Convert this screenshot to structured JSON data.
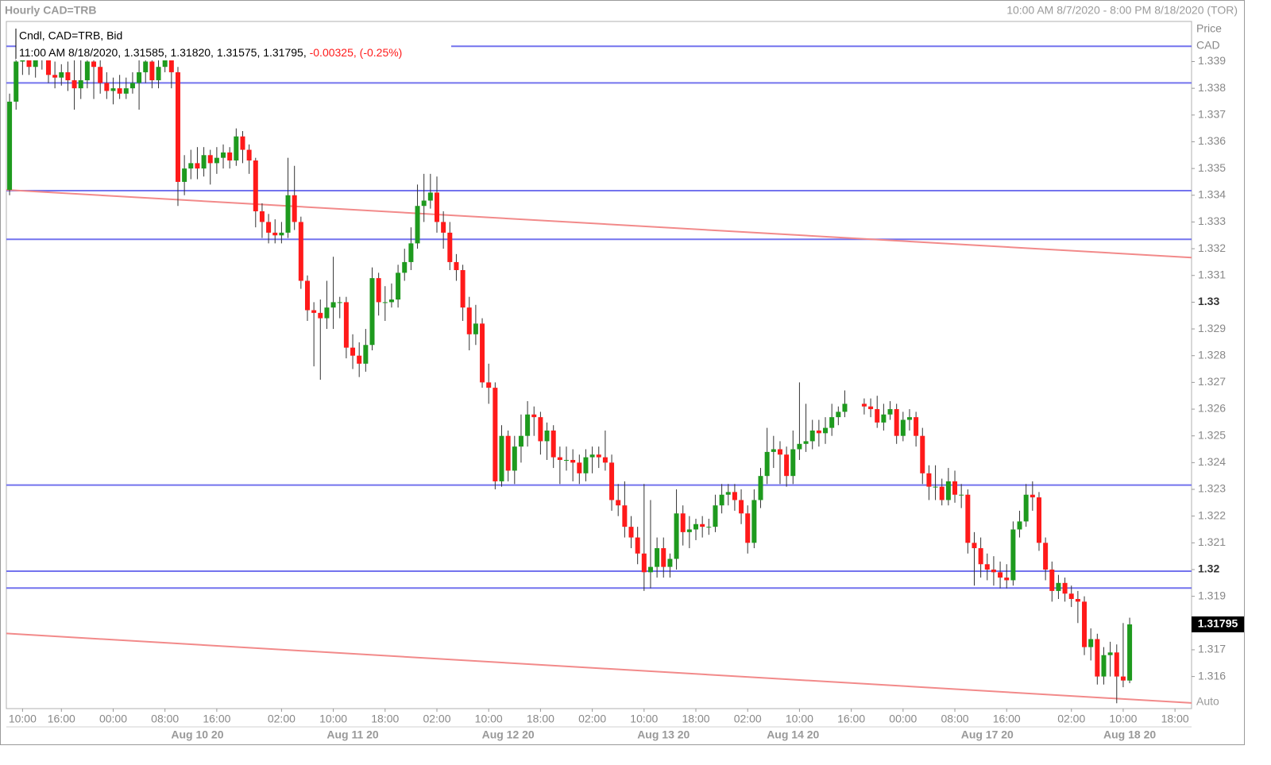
{
  "chart_data": {
    "type": "candlestick",
    "title": "Hourly CAD=TRB",
    "date_range": "10:00 AM 8/7/2020 - 8:00 PM 8/18/2020 (TOR)",
    "legend_title": "Cndl, CAD=TRB, Bid",
    "info_values": "11:00 AM 8/18/2020, 1.31585, 1.31820, 1.31575, 1.31795,",
    "info_change": "-0.00325, (-0.25%)",
    "axis_title": "Price",
    "axis_unit": "CAD",
    "scale_mode": "Auto",
    "last_price": 1.31795,
    "up_color": "#1e9a1e",
    "down_color": "#ff1a1a",
    "hline_color": "#7373ee",
    "trend_color": "#f28a8a",
    "xlim": [
      -0.5,
      182.56
    ],
    "ylim": [
      1.3148,
      1.3405
    ],
    "yticks": [
      1.339,
      1.338,
      1.337,
      1.336,
      1.335,
      1.334,
      1.333,
      1.332,
      1.331,
      1.33,
      1.329,
      1.328,
      1.327,
      1.326,
      1.325,
      1.324,
      1.323,
      1.322,
      1.321,
      1.32,
      1.319,
      1.318,
      1.317,
      1.316
    ],
    "xticks": [
      {
        "value": 2,
        "label": "10:00"
      },
      {
        "value": 8,
        "label": "16:00"
      },
      {
        "value": 16,
        "label": "00:00"
      },
      {
        "value": 24,
        "label": "08:00"
      },
      {
        "value": 32,
        "label": "16:00"
      },
      {
        "value": 42,
        "label": "02:00"
      },
      {
        "value": 50,
        "label": "10:00"
      },
      {
        "value": 58,
        "label": "18:00"
      },
      {
        "value": 66,
        "label": "02:00"
      },
      {
        "value": 74,
        "label": "10:00"
      },
      {
        "value": 82,
        "label": "18:00"
      },
      {
        "value": 90,
        "label": "02:00"
      },
      {
        "value": 98,
        "label": "10:00"
      },
      {
        "value": 106,
        "label": "18:00"
      },
      {
        "value": 114,
        "label": "02:00"
      },
      {
        "value": 122,
        "label": "10:00"
      },
      {
        "value": 130,
        "label": "16:00"
      },
      {
        "value": 138,
        "label": "00:00"
      },
      {
        "value": 146,
        "label": "08:00"
      },
      {
        "value": 154,
        "label": "16:00"
      },
      {
        "value": 164,
        "label": "02:00"
      },
      {
        "value": 172,
        "label": "10:00"
      },
      {
        "value": 180,
        "label": "18:00"
      }
    ],
    "date_ticks": [
      {
        "value": 29,
        "label": "Aug 10 20"
      },
      {
        "value": 53,
        "label": "Aug 11 20"
      },
      {
        "value": 77,
        "label": "Aug 12 20"
      },
      {
        "value": 101,
        "label": "Aug 13 20"
      },
      {
        "value": 121,
        "label": "Aug 14 20"
      },
      {
        "value": 151,
        "label": "Aug 17 20"
      },
      {
        "value": 173,
        "label": "Aug 18 20"
      }
    ],
    "hlines": [
      1.33957,
      1.3382,
      1.33417,
      1.33235,
      1.32316,
      1.31994,
      1.31931
    ],
    "trendlines": [
      {
        "x": [
          -0.5,
          182.56
        ],
        "y": [
          1.3342,
          1.33167
        ]
      },
      {
        "x": [
          -0.5,
          182.56
        ],
        "y": [
          1.31761,
          1.31501
        ]
      }
    ],
    "ohlc": [
      [
        1.3342,
        1.3378,
        1.334,
        1.3375
      ],
      [
        1.3375,
        1.34,
        1.3372,
        1.339
      ],
      [
        1.339,
        1.3398,
        1.3385,
        1.3393
      ],
      [
        1.3393,
        1.3396,
        1.3385,
        1.3388
      ],
      [
        1.3388,
        1.3395,
        1.3384,
        1.3392
      ],
      [
        1.3392,
        1.3396,
        1.3387,
        1.3391
      ],
      [
        1.3391,
        1.3394,
        1.3382,
        1.3385
      ],
      [
        1.3385,
        1.339,
        1.338,
        1.3384
      ],
      [
        1.3384,
        1.3389,
        1.3381,
        1.3386
      ],
      [
        1.3386,
        1.339,
        1.3379,
        1.3383
      ],
      [
        1.3383,
        1.3398,
        1.3372,
        1.338
      ],
      [
        1.338,
        1.3398,
        1.3376,
        1.3383
      ],
      [
        1.3383,
        1.3396,
        1.338,
        1.339
      ],
      [
        1.339,
        1.3395,
        1.3376,
        1.3388
      ],
      [
        1.3388,
        1.3392,
        1.3378,
        1.3382
      ],
      [
        1.3382,
        1.3386,
        1.3376,
        1.3379
      ],
      [
        1.3379,
        1.3384,
        1.3374,
        1.338
      ],
      [
        1.338,
        1.3385,
        1.3376,
        1.3378
      ],
      [
        1.3378,
        1.3384,
        1.3376,
        1.338
      ],
      [
        1.338,
        1.3386,
        1.3378,
        1.3382
      ],
      [
        1.3382,
        1.3392,
        1.3372,
        1.3386
      ],
      [
        1.3386,
        1.3398,
        1.3382,
        1.339
      ],
      [
        1.339,
        1.3394,
        1.338,
        1.3383
      ],
      [
        1.3383,
        1.3392,
        1.338,
        1.3388
      ],
      [
        1.3388,
        1.3396,
        1.3386,
        1.3392
      ],
      [
        1.3392,
        1.3394,
        1.338,
        1.3386
      ],
      [
        1.3386,
        1.3388,
        1.3336,
        1.3345
      ],
      [
        1.3345,
        1.3355,
        1.334,
        1.335
      ],
      [
        1.335,
        1.3357,
        1.3346,
        1.3352
      ],
      [
        1.3352,
        1.3358,
        1.3346,
        1.335
      ],
      [
        1.335,
        1.3358,
        1.3347,
        1.3355
      ],
      [
        1.3355,
        1.3357,
        1.3344,
        1.3352
      ],
      [
        1.3352,
        1.3358,
        1.3348,
        1.3354
      ],
      [
        1.3354,
        1.3359,
        1.335,
        1.3356
      ],
      [
        1.3356,
        1.3358,
        1.335,
        1.3353
      ],
      [
        1.3353,
        1.3365,
        1.3351,
        1.3362
      ],
      [
        1.3362,
        1.3364,
        1.3352,
        1.3357
      ],
      [
        1.3357,
        1.3359,
        1.3348,
        1.3353
      ],
      [
        1.3353,
        1.3354,
        1.3328,
        1.3334
      ],
      [
        1.3334,
        1.3337,
        1.3324,
        1.333
      ],
      [
        1.333,
        1.3333,
        1.3322,
        1.3326
      ],
      [
        1.3326,
        1.3331,
        1.3322,
        1.3325
      ],
      [
        1.3325,
        1.333,
        1.3322,
        1.3326
      ],
      [
        1.3326,
        1.3354,
        1.3324,
        1.334
      ],
      [
        1.334,
        1.3351,
        1.3327,
        1.333
      ],
      [
        1.333,
        1.3332,
        1.3305,
        1.3308
      ],
      [
        1.3308,
        1.331,
        1.3293,
        1.3297
      ],
      [
        1.3297,
        1.33,
        1.3276,
        1.3296
      ],
      [
        1.3296,
        1.3301,
        1.3271,
        1.3294
      ],
      [
        1.3294,
        1.3308,
        1.329,
        1.3298
      ],
      [
        1.3298,
        1.3317,
        1.329,
        1.33
      ],
      [
        1.33,
        1.3302,
        1.3294,
        1.33
      ],
      [
        1.33,
        1.3302,
        1.3279,
        1.3283
      ],
      [
        1.3283,
        1.3288,
        1.3275,
        1.328
      ],
      [
        1.328,
        1.3285,
        1.3272,
        1.3277
      ],
      [
        1.3277,
        1.329,
        1.3274,
        1.3284
      ],
      [
        1.3284,
        1.3313,
        1.3282,
        1.3309
      ],
      [
        1.3309,
        1.3311,
        1.3295,
        1.33
      ],
      [
        1.33,
        1.3306,
        1.3293,
        1.33
      ],
      [
        1.33,
        1.3307,
        1.3298,
        1.3301
      ],
      [
        1.3301,
        1.3314,
        1.3298,
        1.3311
      ],
      [
        1.3311,
        1.332,
        1.3308,
        1.3315
      ],
      [
        1.3315,
        1.3328,
        1.3312,
        1.3322
      ],
      [
        1.3322,
        1.3344,
        1.332,
        1.3336
      ],
      [
        1.3336,
        1.3348,
        1.333,
        1.3338
      ],
      [
        1.3338,
        1.3348,
        1.3335,
        1.3341
      ],
      [
        1.3341,
        1.3347,
        1.3326,
        1.333
      ],
      [
        1.333,
        1.3334,
        1.332,
        1.3326
      ],
      [
        1.3326,
        1.333,
        1.3312,
        1.3315
      ],
      [
        1.3315,
        1.3318,
        1.3308,
        1.3312
      ],
      [
        1.3312,
        1.3314,
        1.3293,
        1.3298
      ],
      [
        1.3298,
        1.3302,
        1.3282,
        1.3288
      ],
      [
        1.3288,
        1.3299,
        1.3284,
        1.3292
      ],
      [
        1.3292,
        1.3294,
        1.3268,
        1.327
      ],
      [
        1.327,
        1.3277,
        1.3262,
        1.3268
      ],
      [
        1.3268,
        1.327,
        1.323,
        1.3233
      ],
      [
        1.3233,
        1.3254,
        1.3231,
        1.325
      ],
      [
        1.325,
        1.3252,
        1.3233,
        1.3237
      ],
      [
        1.3237,
        1.325,
        1.3232,
        1.3246
      ],
      [
        1.3246,
        1.3258,
        1.324,
        1.325
      ],
      [
        1.325,
        1.3263,
        1.3246,
        1.3258
      ],
      [
        1.3258,
        1.3261,
        1.325,
        1.3257
      ],
      [
        1.3257,
        1.3259,
        1.3243,
        1.3248
      ],
      [
        1.3248,
        1.3255,
        1.3241,
        1.3252
      ],
      [
        1.3252,
        1.3254,
        1.3238,
        1.3242
      ],
      [
        1.3242,
        1.3246,
        1.3232,
        1.3241
      ],
      [
        1.3241,
        1.3246,
        1.3237,
        1.3241
      ],
      [
        1.3241,
        1.3245,
        1.3233,
        1.324
      ],
      [
        1.324,
        1.3243,
        1.3232,
        1.3236
      ],
      [
        1.3236,
        1.3245,
        1.3233,
        1.3242
      ],
      [
        1.3242,
        1.3246,
        1.3236,
        1.3243
      ],
      [
        1.3243,
        1.3246,
        1.3238,
        1.3242
      ],
      [
        1.3242,
        1.3252,
        1.3237,
        1.324
      ],
      [
        1.324,
        1.3243,
        1.3222,
        1.3226
      ],
      [
        1.3226,
        1.3232,
        1.322,
        1.3224
      ],
      [
        1.3224,
        1.3233,
        1.3212,
        1.3216
      ],
      [
        1.3216,
        1.322,
        1.3208,
        1.3212
      ],
      [
        1.3212,
        1.3216,
        1.3202,
        1.3206
      ],
      [
        1.3206,
        1.3232,
        1.3192,
        1.3199
      ],
      [
        1.3199,
        1.3226,
        1.3193,
        1.3201
      ],
      [
        1.3201,
        1.3212,
        1.3197,
        1.3208
      ],
      [
        1.3208,
        1.3212,
        1.3197,
        1.3201
      ],
      [
        1.3201,
        1.3206,
        1.3197,
        1.3204
      ],
      [
        1.3204,
        1.323,
        1.32,
        1.3221
      ],
      [
        1.3221,
        1.3224,
        1.3209,
        1.3214
      ],
      [
        1.3214,
        1.322,
        1.3208,
        1.3215
      ],
      [
        1.3215,
        1.3219,
        1.3211,
        1.3217
      ],
      [
        1.3217,
        1.322,
        1.3212,
        1.3216
      ],
      [
        1.3216,
        1.3219,
        1.3213,
        1.3216
      ],
      [
        1.3216,
        1.3228,
        1.3214,
        1.3224
      ],
      [
        1.3224,
        1.3232,
        1.3221,
        1.3228
      ],
      [
        1.3228,
        1.3232,
        1.3224,
        1.3229
      ],
      [
        1.3229,
        1.3232,
        1.3222,
        1.3226
      ],
      [
        1.3226,
        1.323,
        1.3217,
        1.3221
      ],
      [
        1.3221,
        1.3224,
        1.3206,
        1.321
      ],
      [
        1.321,
        1.323,
        1.3208,
        1.3226
      ],
      [
        1.3226,
        1.3238,
        1.3223,
        1.3235
      ],
      [
        1.3235,
        1.3253,
        1.3232,
        1.3244
      ],
      [
        1.3244,
        1.325,
        1.3238,
        1.3245
      ],
      [
        1.3245,
        1.3248,
        1.3232,
        1.3243
      ],
      [
        1.3243,
        1.3246,
        1.3231,
        1.3235
      ],
      [
        1.3235,
        1.3252,
        1.3232,
        1.3245
      ],
      [
        1.3245,
        1.327,
        1.3241,
        1.3247
      ],
      [
        1.3247,
        1.3262,
        1.3244,
        1.3248
      ],
      [
        1.3248,
        1.3256,
        1.3245,
        1.3252
      ],
      [
        1.3252,
        1.3256,
        1.3246,
        1.3251
      ],
      [
        1.3251,
        1.3257,
        1.3247,
        1.3253
      ],
      [
        1.3253,
        1.3262,
        1.325,
        1.3257
      ],
      [
        1.3257,
        1.3261,
        1.3254,
        1.3259
      ],
      [
        1.3259,
        1.3267,
        1.3257,
        1.3262
      ],
      null,
      null,
      [
        1.3262,
        1.3264,
        1.3258,
        1.3261
      ],
      [
        1.3261,
        1.3264,
        1.3257,
        1.326
      ],
      [
        1.326,
        1.3265,
        1.3253,
        1.3255
      ],
      [
        1.3255,
        1.3262,
        1.3252,
        1.3258
      ],
      [
        1.3258,
        1.3263,
        1.3256,
        1.326
      ],
      [
        1.326,
        1.3262,
        1.3247,
        1.325
      ],
      [
        1.325,
        1.3259,
        1.3248,
        1.3256
      ],
      [
        1.3256,
        1.326,
        1.3252,
        1.3257
      ],
      [
        1.3257,
        1.3259,
        1.3246,
        1.325
      ],
      [
        1.325,
        1.3253,
        1.3232,
        1.3236
      ],
      [
        1.3236,
        1.3239,
        1.3226,
        1.3231
      ],
      [
        1.3231,
        1.3239,
        1.3226,
        1.3231
      ],
      [
        1.3231,
        1.3234,
        1.3224,
        1.3226
      ],
      [
        1.3226,
        1.3238,
        1.3224,
        1.3233
      ],
      [
        1.3233,
        1.3237,
        1.3225,
        1.3228
      ],
      [
        1.3228,
        1.3232,
        1.3223,
        1.3228
      ],
      [
        1.3228,
        1.323,
        1.3206,
        1.321
      ],
      [
        1.321,
        1.3214,
        1.3194,
        1.3208
      ],
      [
        1.3208,
        1.3212,
        1.3197,
        1.3202
      ],
      [
        1.3202,
        1.3206,
        1.3196,
        1.32
      ],
      [
        1.32,
        1.3205,
        1.3194,
        1.3199
      ],
      [
        1.3199,
        1.3203,
        1.3193,
        1.3197
      ],
      [
        1.3197,
        1.3202,
        1.3193,
        1.3196
      ],
      [
        1.3196,
        1.3218,
        1.3194,
        1.3215
      ],
      [
        1.3215,
        1.3222,
        1.3212,
        1.3218
      ],
      [
        1.3218,
        1.3232,
        1.3216,
        1.3228
      ],
      [
        1.3228,
        1.3233,
        1.3222,
        1.3227
      ],
      [
        1.3227,
        1.3229,
        1.3207,
        1.321
      ],
      [
        1.321,
        1.3212,
        1.3196,
        1.32
      ],
      [
        1.32,
        1.3203,
        1.3188,
        1.3192
      ],
      [
        1.3192,
        1.3198,
        1.3189,
        1.3195
      ],
      [
        1.3195,
        1.3197,
        1.3188,
        1.3191
      ],
      [
        1.3191,
        1.3194,
        1.3186,
        1.3189
      ],
      [
        1.3189,
        1.3192,
        1.318,
        1.3188
      ],
      [
        1.3188,
        1.319,
        1.3168,
        1.3171
      ],
      [
        1.3171,
        1.3178,
        1.3166,
        1.3174
      ],
      [
        1.3174,
        1.3176,
        1.3157,
        1.316
      ],
      [
        1.316,
        1.3171,
        1.3157,
        1.3168
      ],
      [
        1.3168,
        1.3173,
        1.316,
        1.3169
      ],
      [
        1.3169,
        1.3172,
        1.315,
        1.316
      ],
      [
        1.316,
        1.318,
        1.3156,
        1.31585
      ],
      [
        1.31585,
        1.3182,
        1.31575,
        1.31795
      ]
    ]
  }
}
